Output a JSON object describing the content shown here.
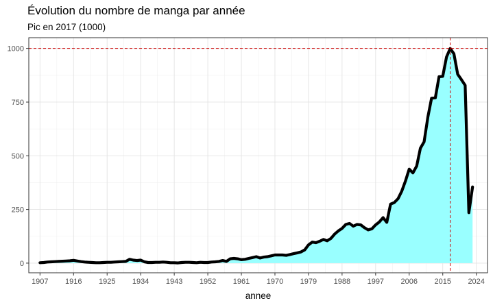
{
  "chart_data": {
    "type": "area",
    "title": "Évolution du nombre de manga par année",
    "subtitle": "Pic en 2017 (1000)",
    "xlabel": "annee",
    "ylabel": "",
    "xlim": [
      1904,
      2027
    ],
    "ylim": [
      -45,
      1050
    ],
    "x_ticks": [
      1907,
      1916,
      1925,
      1934,
      1943,
      1952,
      1961,
      1970,
      1979,
      1988,
      1997,
      2006,
      2015,
      2024
    ],
    "y_ticks": [
      0,
      250,
      500,
      750,
      1000
    ],
    "grid": true,
    "fill_color": "#99ffff",
    "line_color": "#000000",
    "reference_line_color": "#cc0000",
    "reference_lines": {
      "x": 2017,
      "y": 1000
    },
    "peak": {
      "x": 2017,
      "y": 1000
    },
    "points": [
      [
        1907,
        2
      ],
      [
        1908,
        3
      ],
      [
        1909,
        5
      ],
      [
        1910,
        6
      ],
      [
        1911,
        7
      ],
      [
        1912,
        8
      ],
      [
        1913,
        9
      ],
      [
        1914,
        10
      ],
      [
        1915,
        11
      ],
      [
        1916,
        13
      ],
      [
        1917,
        10
      ],
      [
        1918,
        7
      ],
      [
        1919,
        5
      ],
      [
        1920,
        4
      ],
      [
        1921,
        3
      ],
      [
        1922,
        2
      ],
      [
        1923,
        2
      ],
      [
        1924,
        3
      ],
      [
        1925,
        4
      ],
      [
        1926,
        4
      ],
      [
        1927,
        5
      ],
      [
        1928,
        6
      ],
      [
        1929,
        7
      ],
      [
        1930,
        8
      ],
      [
        1931,
        18
      ],
      [
        1932,
        14
      ],
      [
        1933,
        12
      ],
      [
        1934,
        14
      ],
      [
        1935,
        6
      ],
      [
        1936,
        3
      ],
      [
        1937,
        3
      ],
      [
        1938,
        4
      ],
      [
        1939,
        4
      ],
      [
        1940,
        5
      ],
      [
        1941,
        4
      ],
      [
        1942,
        2
      ],
      [
        1943,
        2
      ],
      [
        1944,
        1
      ],
      [
        1945,
        3
      ],
      [
        1946,
        4
      ],
      [
        1947,
        4
      ],
      [
        1948,
        3
      ],
      [
        1949,
        2
      ],
      [
        1950,
        4
      ],
      [
        1951,
        3
      ],
      [
        1952,
        3
      ],
      [
        1953,
        5
      ],
      [
        1954,
        6
      ],
      [
        1955,
        8
      ],
      [
        1956,
        12
      ],
      [
        1957,
        8
      ],
      [
        1958,
        20
      ],
      [
        1959,
        22
      ],
      [
        1960,
        20
      ],
      [
        1961,
        16
      ],
      [
        1962,
        18
      ],
      [
        1963,
        22
      ],
      [
        1964,
        26
      ],
      [
        1965,
        30
      ],
      [
        1966,
        24
      ],
      [
        1967,
        28
      ],
      [
        1968,
        30
      ],
      [
        1969,
        34
      ],
      [
        1970,
        38
      ],
      [
        1971,
        38
      ],
      [
        1972,
        38
      ],
      [
        1973,
        36
      ],
      [
        1974,
        40
      ],
      [
        1975,
        44
      ],
      [
        1976,
        48
      ],
      [
        1977,
        52
      ],
      [
        1978,
        62
      ],
      [
        1979,
        85
      ],
      [
        1980,
        98
      ],
      [
        1981,
        95
      ],
      [
        1982,
        102
      ],
      [
        1983,
        110
      ],
      [
        1984,
        104
      ],
      [
        1985,
        115
      ],
      [
        1986,
        135
      ],
      [
        1987,
        150
      ],
      [
        1988,
        162
      ],
      [
        1989,
        180
      ],
      [
        1990,
        185
      ],
      [
        1991,
        172
      ],
      [
        1992,
        180
      ],
      [
        1993,
        178
      ],
      [
        1994,
        165
      ],
      [
        1995,
        155
      ],
      [
        1996,
        160
      ],
      [
        1997,
        178
      ],
      [
        1998,
        192
      ],
      [
        1999,
        212
      ],
      [
        2000,
        190
      ],
      [
        2001,
        275
      ],
      [
        2002,
        282
      ],
      [
        2003,
        300
      ],
      [
        2004,
        335
      ],
      [
        2005,
        382
      ],
      [
        2006,
        438
      ],
      [
        2007,
        420
      ],
      [
        2008,
        452
      ],
      [
        2009,
        535
      ],
      [
        2010,
        565
      ],
      [
        2011,
        680
      ],
      [
        2012,
        768
      ],
      [
        2013,
        770
      ],
      [
        2014,
        868
      ],
      [
        2015,
        870
      ],
      [
        2016,
        960
      ],
      [
        2017,
        1000
      ],
      [
        2018,
        975
      ],
      [
        2019,
        880
      ],
      [
        2020,
        855
      ],
      [
        2021,
        828
      ],
      [
        2022,
        235
      ],
      [
        2023,
        355
      ]
    ]
  }
}
